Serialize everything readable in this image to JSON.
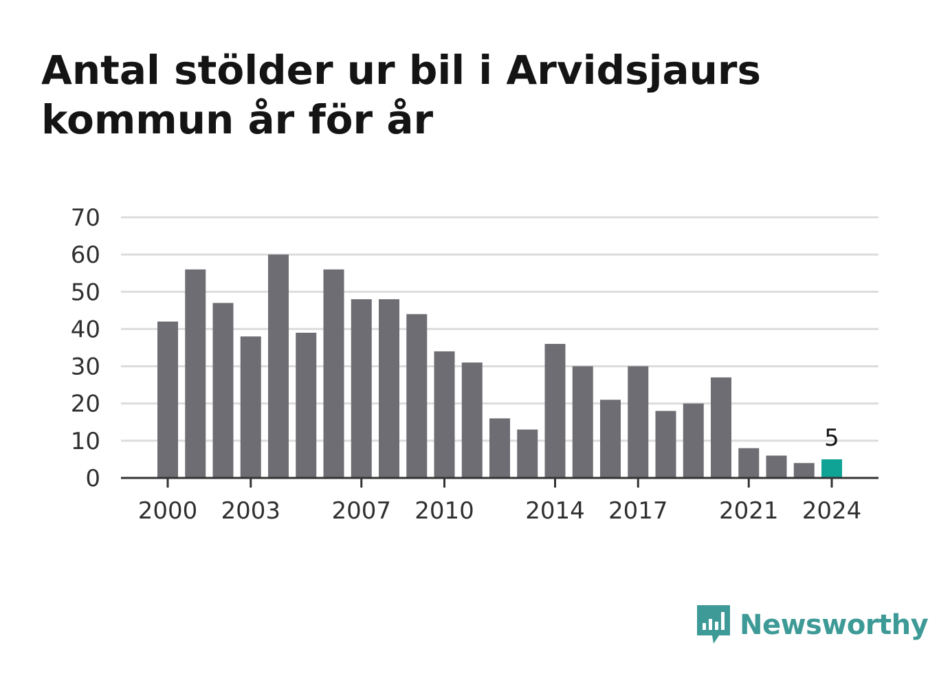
{
  "title": "Antal stölder ur bil i Arvidsjaurs kommun år för år",
  "brand": {
    "name": "Newsworthy",
    "icon": "newsworthy-logo-icon",
    "color": "#3d9a96"
  },
  "colors": {
    "bar": "#6e6d73",
    "highlight": "#0fa396",
    "grid": "#dcdcdc",
    "axis": "#333333"
  },
  "chart_data": {
    "type": "bar",
    "title": "Antal stölder ur bil i Arvidsjaurs kommun år för år",
    "xlabel": "",
    "ylabel": "",
    "ylim": [
      0,
      70
    ],
    "yticks": [
      0,
      10,
      20,
      30,
      40,
      50,
      60,
      70
    ],
    "grid": true,
    "categories": [
      "2000",
      "2001",
      "2002",
      "2003",
      "2004",
      "2005",
      "2006",
      "2007",
      "2008",
      "2009",
      "2010",
      "2011",
      "2012",
      "2013",
      "2014",
      "2015",
      "2016",
      "2017",
      "2018",
      "2019",
      "2020",
      "2021",
      "2022",
      "2023",
      "2024"
    ],
    "xtick_labels": [
      "2000",
      "2003",
      "2007",
      "2010",
      "2014",
      "2017",
      "2021",
      "2024"
    ],
    "values": [
      42,
      56,
      47,
      38,
      60,
      39,
      56,
      48,
      48,
      44,
      34,
      31,
      16,
      13,
      36,
      30,
      21,
      30,
      18,
      20,
      27,
      8,
      6,
      4,
      5
    ],
    "highlight": {
      "category": "2024",
      "label": "5"
    }
  }
}
